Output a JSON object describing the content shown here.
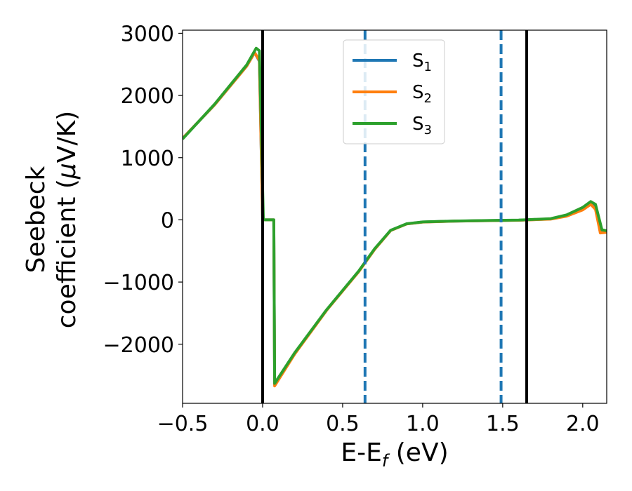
{
  "chart_data": {
    "type": "line",
    "title": "",
    "xlabel": {
      "main": "E-E",
      "sub": "f",
      "tail": " (eV)"
    },
    "ylabel": {
      "line1": "Seebeck",
      "line2_pre": "coefficient  (",
      "mu": "μ",
      "line2_post": "V/K)"
    },
    "xlim": [
      -0.5,
      2.15
    ],
    "ylim": [
      -2950,
      3050
    ],
    "x_ticks": [
      -0.5,
      0.0,
      0.5,
      1.0,
      1.5,
      2.0
    ],
    "x_tick_labels": [
      "−0.5",
      "0.0",
      "0.5",
      "1.0",
      "1.5",
      "2.0"
    ],
    "y_ticks": [
      -2000,
      -1000,
      0,
      1000,
      2000,
      3000
    ],
    "y_tick_labels": [
      "−2000",
      "−1000",
      "0",
      "1000",
      "2000",
      "3000"
    ],
    "grid": false,
    "legend_placement": "upper-center",
    "vlines": [
      {
        "x": 0.0,
        "color": "#000000",
        "style": "solid"
      },
      {
        "x": 1.65,
        "color": "#000000",
        "style": "solid"
      },
      {
        "x": 0.64,
        "color": "#1f77b4",
        "style": "dashed"
      },
      {
        "x": 1.49,
        "color": "#1f77b4",
        "style": "dashed"
      }
    ],
    "series": [
      {
        "name": {
          "base": "S",
          "sub": "1"
        },
        "color": "#1f77b4",
        "points": [
          [
            -0.5,
            1310
          ],
          [
            -0.3,
            1850
          ],
          [
            -0.1,
            2470
          ],
          [
            -0.05,
            2690
          ],
          [
            -0.02,
            2550
          ],
          [
            0.0,
            0
          ],
          [
            0.07,
            0
          ],
          [
            0.075,
            -2650
          ],
          [
            0.2,
            -2150
          ],
          [
            0.4,
            -1450
          ],
          [
            0.6,
            -830
          ],
          [
            0.7,
            -470
          ],
          [
            0.8,
            -170
          ],
          [
            0.9,
            -65
          ],
          [
            1.0,
            -35
          ],
          [
            1.2,
            -20
          ],
          [
            1.4,
            -12
          ],
          [
            1.6,
            -5
          ],
          [
            1.8,
            15
          ],
          [
            1.9,
            70
          ],
          [
            2.0,
            180
          ],
          [
            2.05,
            270
          ],
          [
            2.08,
            210
          ],
          [
            2.11,
            -200
          ],
          [
            2.15,
            -190
          ]
        ]
      },
      {
        "name": {
          "base": "S",
          "sub": "2"
        },
        "color": "#ff7f0e",
        "points": [
          [
            -0.5,
            1310
          ],
          [
            -0.3,
            1850
          ],
          [
            -0.1,
            2470
          ],
          [
            -0.05,
            2690
          ],
          [
            -0.02,
            2560
          ],
          [
            0.0,
            0
          ],
          [
            0.07,
            0
          ],
          [
            0.075,
            -2670
          ],
          [
            0.2,
            -2160
          ],
          [
            0.4,
            -1455
          ],
          [
            0.6,
            -835
          ],
          [
            0.7,
            -475
          ],
          [
            0.8,
            -172
          ],
          [
            0.9,
            -66
          ],
          [
            1.0,
            -36
          ],
          [
            1.2,
            -21
          ],
          [
            1.4,
            -13
          ],
          [
            1.6,
            -6
          ],
          [
            1.8,
            12
          ],
          [
            1.9,
            60
          ],
          [
            2.0,
            160
          ],
          [
            2.05,
            250
          ],
          [
            2.08,
            170
          ],
          [
            2.11,
            -210
          ],
          [
            2.15,
            -200
          ]
        ]
      },
      {
        "name": {
          "base": "S",
          "sub": "3"
        },
        "color": "#2ca02c",
        "points": [
          [
            -0.5,
            1300
          ],
          [
            -0.3,
            1860
          ],
          [
            -0.1,
            2490
          ],
          [
            -0.04,
            2760
          ],
          [
            -0.02,
            2720
          ],
          [
            0.005,
            0
          ],
          [
            0.07,
            0
          ],
          [
            0.075,
            -2630
          ],
          [
            0.2,
            -2140
          ],
          [
            0.4,
            -1445
          ],
          [
            0.6,
            -825
          ],
          [
            0.7,
            -465
          ],
          [
            0.8,
            -168
          ],
          [
            0.9,
            -63
          ],
          [
            1.0,
            -34
          ],
          [
            1.2,
            -19
          ],
          [
            1.4,
            -11
          ],
          [
            1.6,
            -4
          ],
          [
            1.8,
            20
          ],
          [
            1.9,
            80
          ],
          [
            2.0,
            200
          ],
          [
            2.05,
            295
          ],
          [
            2.08,
            250
          ],
          [
            2.12,
            -160
          ],
          [
            2.15,
            -175
          ]
        ]
      }
    ]
  }
}
